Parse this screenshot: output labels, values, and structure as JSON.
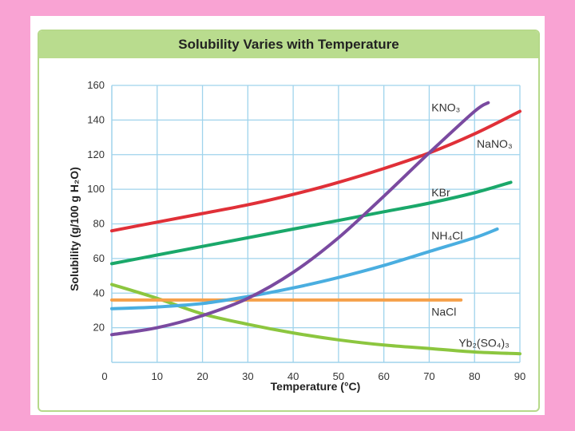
{
  "chart_data": {
    "type": "line",
    "title": "Solubility Varies with Temperature",
    "xlabel": "Temperature (°C)",
    "ylabel": "Solubility (g/100 g H₂O)",
    "xlim": [
      0,
      90
    ],
    "ylim": [
      0,
      160
    ],
    "xticks": [
      "0",
      "10",
      "20",
      "30",
      "40",
      "50",
      "60",
      "70",
      "80",
      "90"
    ],
    "yticks": [
      "20",
      "40",
      "60",
      "80",
      "100",
      "120",
      "140",
      "160"
    ],
    "grid": true,
    "series": [
      {
        "name": "KNO₃",
        "color": "#7a4aa0",
        "x": [
          0,
          10,
          20,
          30,
          40,
          50,
          60,
          70,
          80,
          83
        ],
        "y": [
          16,
          20,
          27,
          37,
          52,
          72,
          96,
          121,
          145,
          150
        ]
      },
      {
        "name": "NaNO₃",
        "color": "#e03038",
        "x": [
          0,
          10,
          20,
          30,
          40,
          50,
          60,
          70,
          80,
          90
        ],
        "y": [
          76,
          81,
          86,
          91,
          97,
          104,
          112,
          121,
          132,
          145
        ]
      },
      {
        "name": "KBr",
        "color": "#1aa86a",
        "x": [
          0,
          10,
          20,
          30,
          40,
          50,
          60,
          70,
          80,
          88
        ],
        "y": [
          57,
          62,
          67,
          72,
          77,
          82,
          87,
          92,
          98,
          104
        ]
      },
      {
        "name": "NH₄Cl",
        "color": "#4aaee0",
        "x": [
          0,
          10,
          20,
          30,
          40,
          50,
          60,
          70,
          80,
          85
        ],
        "y": [
          31,
          32,
          34,
          38,
          43,
          49,
          56,
          64,
          72,
          77
        ]
      },
      {
        "name": "NaCl",
        "color": "#f5a04a",
        "x": [
          0,
          10,
          20,
          30,
          40,
          50,
          60,
          70,
          77
        ],
        "y": [
          36,
          36,
          36,
          36,
          36,
          36,
          36,
          36,
          36
        ]
      },
      {
        "name": "Yb₂(SO₄)₃",
        "color": "#8cc63f",
        "x": [
          0,
          10,
          20,
          30,
          40,
          50,
          60,
          70,
          80,
          90
        ],
        "y": [
          45,
          37,
          28,
          22,
          17,
          13,
          10,
          8,
          6,
          5
        ]
      }
    ]
  }
}
